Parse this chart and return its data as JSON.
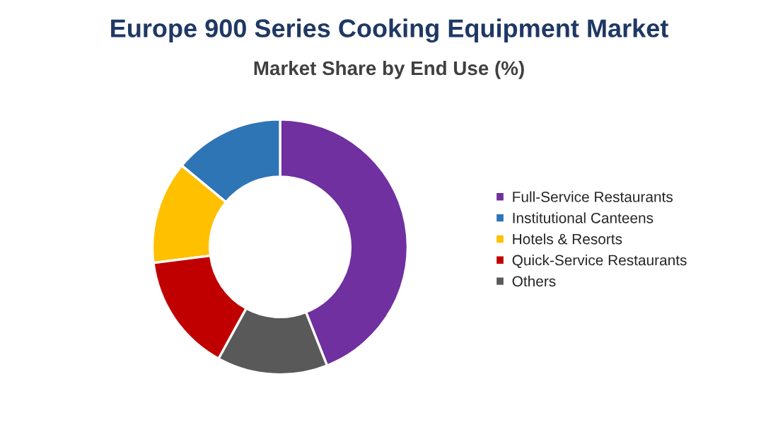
{
  "chart_data": {
    "type": "donut",
    "title": "Europe 900 Series Cooking Equipment Market",
    "subtitle": "Market Share by End Use (%)",
    "categories": [
      "Full-Service Restaurants",
      "Institutional Canteens",
      "Hotels & Resorts",
      "Quick-Service Restaurants",
      "Others"
    ],
    "values": [
      44,
      14,
      13,
      15,
      14
    ],
    "colors": [
      "#7030a0",
      "#2e75b6",
      "#ffc000",
      "#c00000",
      "#595959"
    ],
    "legend": "right"
  }
}
